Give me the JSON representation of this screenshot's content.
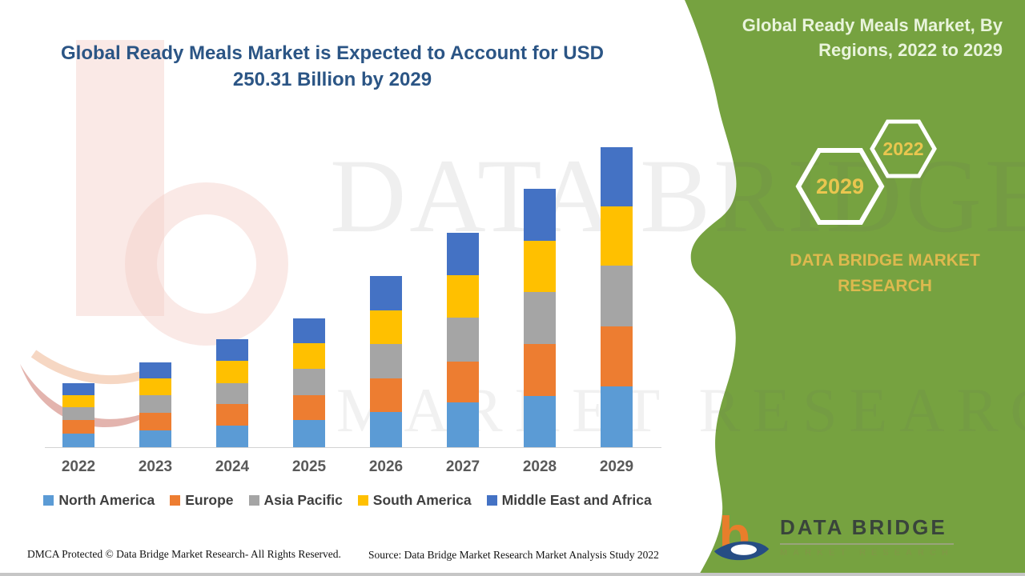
{
  "header": {
    "title_line1": "Global Ready Meals Market is Expected to Account for USD",
    "title_line2": "250.31 Billion by 2029"
  },
  "side_panel": {
    "title_line1": "Global Ready Meals Market, By",
    "title_line2": "Regions, 2022 to 2029",
    "hex_small_label": "2022",
    "hex_large_label": "2029",
    "brand_line1": "DATA BRIDGE MARKET",
    "brand_line2": "RESEARCH",
    "panel_color": "#76A240",
    "hex_text_color": "#EAC64F"
  },
  "chart_data": {
    "type": "bar",
    "stacked": true,
    "title": "Global Ready Meals Market is Expected to Account for USD 250.31 Billion by 2029",
    "unit": "USD Billion",
    "categories": [
      "2022",
      "2023",
      "2024",
      "2025",
      "2026",
      "2027",
      "2028",
      "2029"
    ],
    "series": [
      {
        "name": "North America",
        "color": "#5B9BD5",
        "values": [
          11.3,
          14.0,
          18.0,
          22.7,
          29.4,
          37.4,
          42.7,
          50.7
        ]
      },
      {
        "name": "Europe",
        "color": "#ED7D31",
        "values": [
          11.3,
          14.7,
          18.0,
          20.7,
          28.0,
          34.0,
          43.4,
          50.1
        ]
      },
      {
        "name": "Asia Pacific",
        "color": "#A5A5A5",
        "values": [
          10.7,
          14.7,
          17.4,
          22.0,
          28.7,
          36.7,
          43.4,
          50.7
        ]
      },
      {
        "name": "South America",
        "color": "#FFC000",
        "values": [
          10.0,
          14.0,
          18.7,
          21.4,
          28.0,
          35.4,
          42.7,
          49.4
        ]
      },
      {
        "name": "Middle East and Africa",
        "color": "#4472C4",
        "values": [
          10.0,
          13.4,
          18.0,
          20.7,
          28.7,
          35.4,
          43.4,
          49.4
        ]
      }
    ],
    "totals": [
      53.3,
      70.8,
      90.1,
      107.5,
      142.8,
      178.9,
      215.6,
      250.31
    ],
    "ylim": [
      0,
      260
    ],
    "grid": false,
    "legend_position": "bottom"
  },
  "watermark": {
    "text_large": "DATA BRIDGE",
    "text_sub": "MARKET RESEARCH"
  },
  "logo": {
    "mark": "b",
    "text_main": "DATA BRIDGE",
    "text_sub": "MARKET RESEARCH"
  },
  "footer": {
    "dmca": "DMCA Protected © Data Bridge Market Research- All Rights Reserved.",
    "source": "Source: Data Bridge Market Research Market Analysis Study 2022"
  }
}
